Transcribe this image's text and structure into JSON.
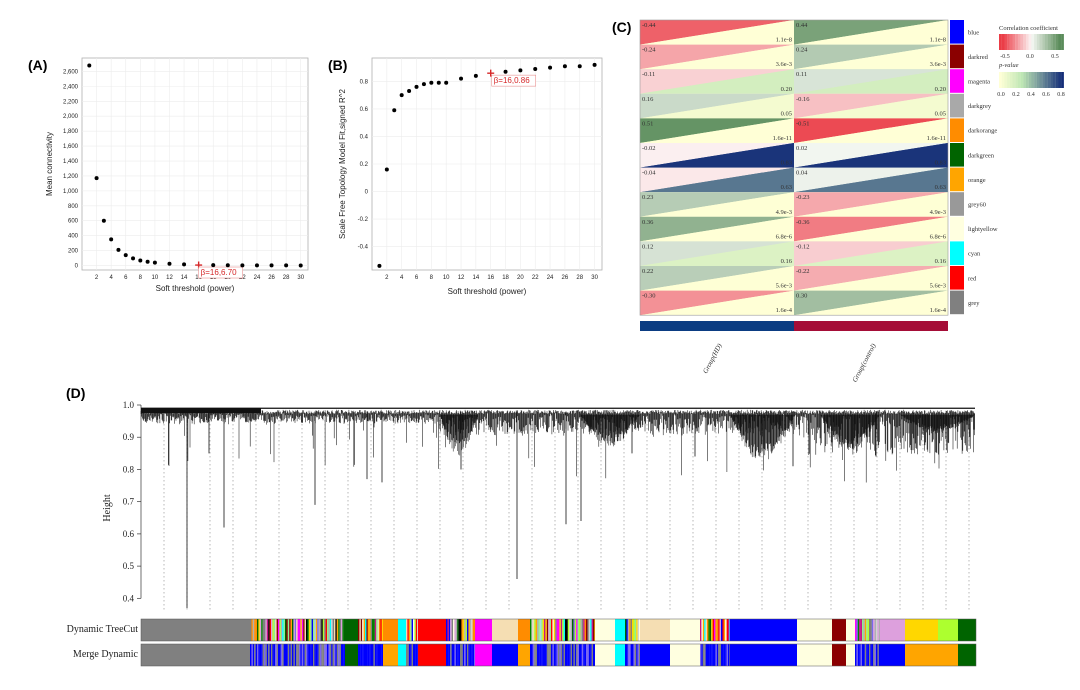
{
  "panels": {
    "a": {
      "label": "(A)"
    },
    "b": {
      "label": "(B)"
    },
    "c": {
      "label": "(C)"
    },
    "d": {
      "label": "(D)"
    }
  },
  "chart_data": [
    {
      "panel": "A",
      "type": "scatter",
      "xlabel": "Soft threshold (power)",
      "ylabel": "Mean connectivity",
      "xlim": [
        0,
        31
      ],
      "ylim": [
        -60,
        2780
      ],
      "xticks": [
        2,
        4,
        6,
        8,
        10,
        12,
        14,
        16,
        18,
        20,
        22,
        24,
        26,
        28,
        30
      ],
      "yticks": [
        0,
        200,
        400,
        600,
        800,
        1000,
        1200,
        1400,
        1600,
        1800,
        2000,
        2200,
        2400,
        2600
      ],
      "ytick_labels": [
        "0",
        "200",
        "400",
        "600",
        "800",
        "1,000",
        "1,200",
        "1,400",
        "1,600",
        "1,800",
        "2,000",
        "2,200",
        "2,400",
        "2,600"
      ],
      "x": [
        1,
        2,
        3,
        4,
        5,
        6,
        7,
        8,
        9,
        10,
        12,
        14,
        16,
        18,
        20,
        22,
        24,
        26,
        28,
        30
      ],
      "y": [
        2680,
        1170,
        600,
        350,
        210,
        140,
        95,
        68,
        50,
        38,
        24,
        16,
        6.7,
        4.8,
        3.6,
        2.7,
        2.1,
        1.7,
        1.4,
        1.1
      ],
      "highlight": {
        "x": 16,
        "y": 6.7,
        "label": "β=16,6.70",
        "color": "#d62728"
      },
      "grid": true
    },
    {
      "panel": "B",
      "type": "scatter",
      "xlabel": "Soft threshold (power)",
      "ylabel": "Scale Free Topology Model Fit,signed R^2",
      "xlim": [
        0,
        31
      ],
      "ylim": [
        -0.57,
        0.97
      ],
      "xticks": [
        2,
        4,
        6,
        8,
        10,
        12,
        14,
        16,
        18,
        20,
        22,
        24,
        26,
        28,
        30
      ],
      "yticks": [
        -0.4,
        -0.2,
        0,
        0.2,
        0.4,
        0.6,
        0.8
      ],
      "ytick_labels": [
        "-0.4",
        "-0.2",
        "0",
        "0.2",
        "0.4",
        "0.6",
        "0.8"
      ],
      "x": [
        1,
        2,
        3,
        4,
        5,
        6,
        7,
        8,
        9,
        10,
        12,
        14,
        16,
        18,
        20,
        22,
        24,
        26,
        28,
        30
      ],
      "y": [
        -0.54,
        0.16,
        0.59,
        0.7,
        0.73,
        0.76,
        0.78,
        0.79,
        0.79,
        0.79,
        0.82,
        0.84,
        0.86,
        0.87,
        0.88,
        0.89,
        0.9,
        0.91,
        0.91,
        0.92
      ],
      "highlight": {
        "x": 16,
        "y": 0.86,
        "label": "β=16,0.86",
        "color": "#d62728"
      },
      "grid": true
    },
    {
      "panel": "C",
      "type": "heatmap",
      "columns": [
        "Group(HD)",
        "Group(control)"
      ],
      "column_colors": [
        "#0b3c82",
        "#a50d37"
      ],
      "modules": [
        {
          "name": "blue",
          "color": "#0000ff",
          "corr": [
            "-0.44",
            "0.44"
          ],
          "p": [
            "1.1e-8",
            "1.1e-8"
          ]
        },
        {
          "name": "darkred",
          "color": "#8b0000",
          "corr": [
            "-0.24",
            "0.24"
          ],
          "p": [
            "3.6e-3",
            "3.6e-3"
          ]
        },
        {
          "name": "magenta",
          "color": "#ff00ff",
          "corr": [
            "-0.11",
            "0.11"
          ],
          "p": [
            "0.20",
            "0.20"
          ]
        },
        {
          "name": "darkgrey",
          "color": "#a9a9a9",
          "corr": [
            "0.16",
            "-0.16"
          ],
          "p": [
            "0.05",
            "0.05"
          ]
        },
        {
          "name": "darkorange",
          "color": "#ff8c00",
          "corr": [
            "0.51",
            "-0.51"
          ],
          "p": [
            "1.6e-11",
            "1.6e-11"
          ]
        },
        {
          "name": "darkgreen",
          "color": "#006400",
          "corr": [
            "-0.02",
            "0.02"
          ],
          "p": [
            "0.83",
            "0.83"
          ]
        },
        {
          "name": "orange",
          "color": "#ffa500",
          "corr": [
            "-0.04",
            "0.04"
          ],
          "p": [
            "0.63",
            "0.63"
          ]
        },
        {
          "name": "grey60",
          "color": "#999999",
          "corr": [
            "0.23",
            "-0.23"
          ],
          "p": [
            "4.9e-3",
            "4.9e-3"
          ]
        },
        {
          "name": "lightyellow",
          "color": "#ffffe0",
          "corr": [
            "0.36",
            "-0.36"
          ],
          "p": [
            "6.8e-6",
            "6.8e-6"
          ]
        },
        {
          "name": "cyan",
          "color": "#00ffff",
          "corr": [
            "0.12",
            "-0.12"
          ],
          "p": [
            "0.16",
            "0.16"
          ]
        },
        {
          "name": "red",
          "color": "#ff0000",
          "corr": [
            "0.22",
            "-0.22"
          ],
          "p": [
            "5.6e-3",
            "5.6e-3"
          ]
        },
        {
          "name": "grey",
          "color": "#808080",
          "corr": [
            "-0.30",
            "0.30"
          ],
          "p": [
            "1.6e-4",
            "1.6e-4"
          ]
        }
      ],
      "legend": {
        "corr_title": "Correlation coefficient",
        "corr_ticks": [
          "-0.5",
          "0.0",
          "0.5"
        ],
        "p_title": "p-value",
        "p_ticks": [
          "0.0",
          "0.2",
          "0.4",
          "0.6",
          "0.8"
        ]
      }
    },
    {
      "panel": "D",
      "type": "dendrogram",
      "ylabel": "Height",
      "ylim": [
        0.37,
        1.0
      ],
      "yticks": [
        0.4,
        0.5,
        0.6,
        0.7,
        0.8,
        0.9,
        1.0
      ],
      "ytick_labels": [
        "0.4",
        "0.5",
        "0.6",
        "0.7",
        "0.8",
        "0.9",
        "1.0"
      ],
      "row_labels": [
        "Dynamic TreeCut",
        "Merge Dynamic"
      ],
      "palette": [
        "#808080",
        "#b0b0b0",
        "#7b68ee",
        "#ff8c00",
        "#add8e6",
        "#ff00ff",
        "#ffffe0",
        "#008000",
        "#00ffff",
        "#ff0000",
        "#ffa500",
        "#006400",
        "#0000ff",
        "#f5deb3",
        "#8b0000",
        "#d3d3d3",
        "#c71585",
        "#adff2f",
        "#000000",
        "#90ee90",
        "#dda0dd",
        "#ffd700"
      ]
    }
  ]
}
